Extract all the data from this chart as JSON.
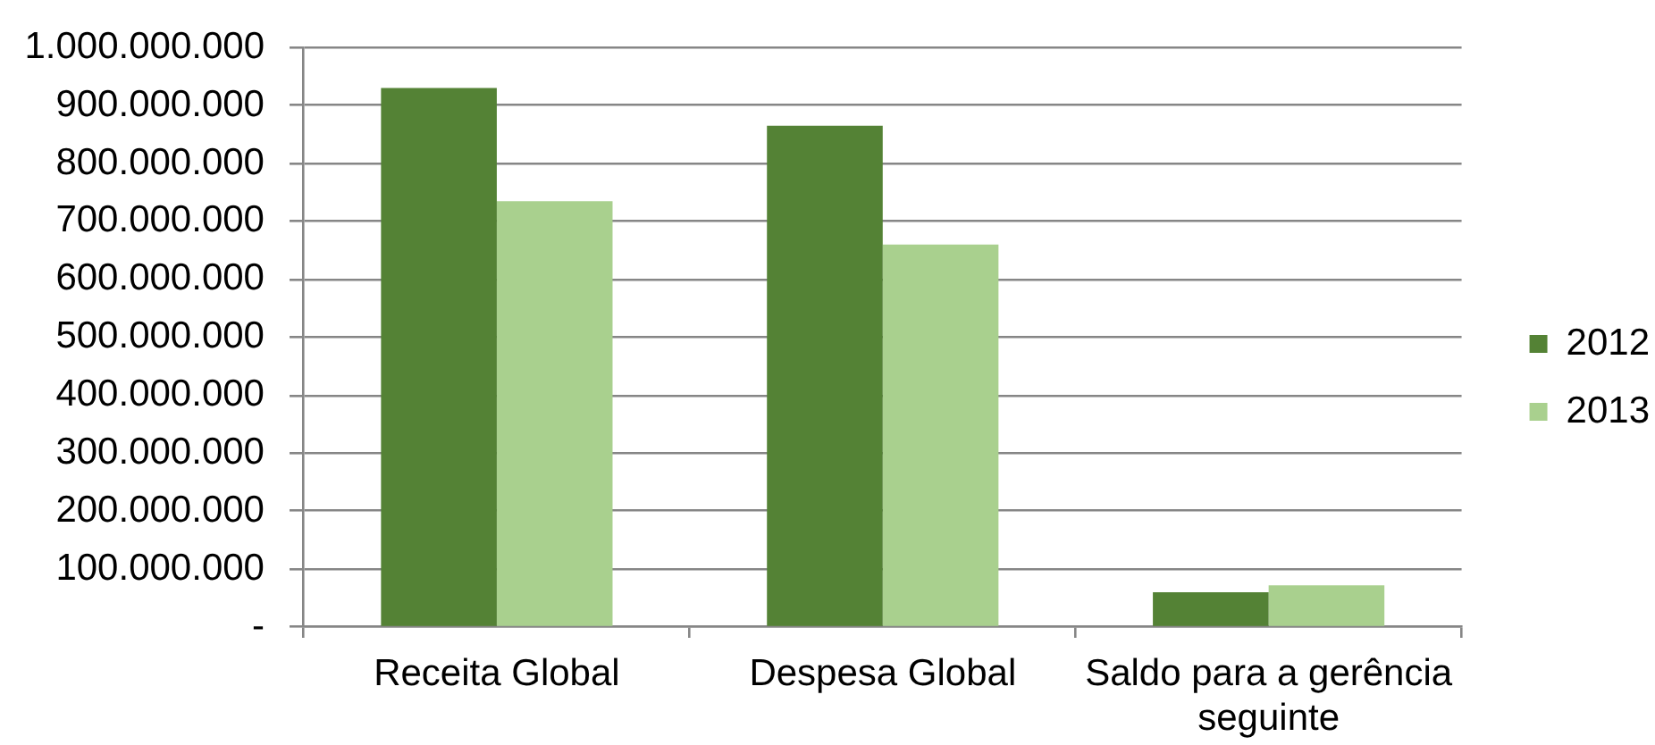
{
  "chart_data": {
    "type": "bar",
    "categories": [
      "Receita Global",
      "Despesa Global",
      "Saldo para a gerência seguinte"
    ],
    "series": [
      {
        "name": "2012",
        "color": "#548235",
        "values": [
          930000000,
          865000000,
          60000000
        ]
      },
      {
        "name": "2013",
        "color": "#a9d08e",
        "values": [
          735000000,
          660000000,
          72000000
        ]
      }
    ],
    "ylim": [
      0,
      1000000000
    ],
    "yticks": [
      {
        "value": 0,
        "label": "-"
      },
      {
        "value": 100000000,
        "label": "100.000.000"
      },
      {
        "value": 200000000,
        "label": "200.000.000"
      },
      {
        "value": 300000000,
        "label": "300.000.000"
      },
      {
        "value": 400000000,
        "label": "400.000.000"
      },
      {
        "value": 500000000,
        "label": "500.000.000"
      },
      {
        "value": 600000000,
        "label": "600.000.000"
      },
      {
        "value": 700000000,
        "label": "700.000.000"
      },
      {
        "value": 800000000,
        "label": "800.000.000"
      },
      {
        "value": 900000000,
        "label": "900.000.000"
      },
      {
        "value": 1000000000,
        "label": "1.000.000.000"
      }
    ],
    "grid": "y",
    "legend": "right"
  }
}
